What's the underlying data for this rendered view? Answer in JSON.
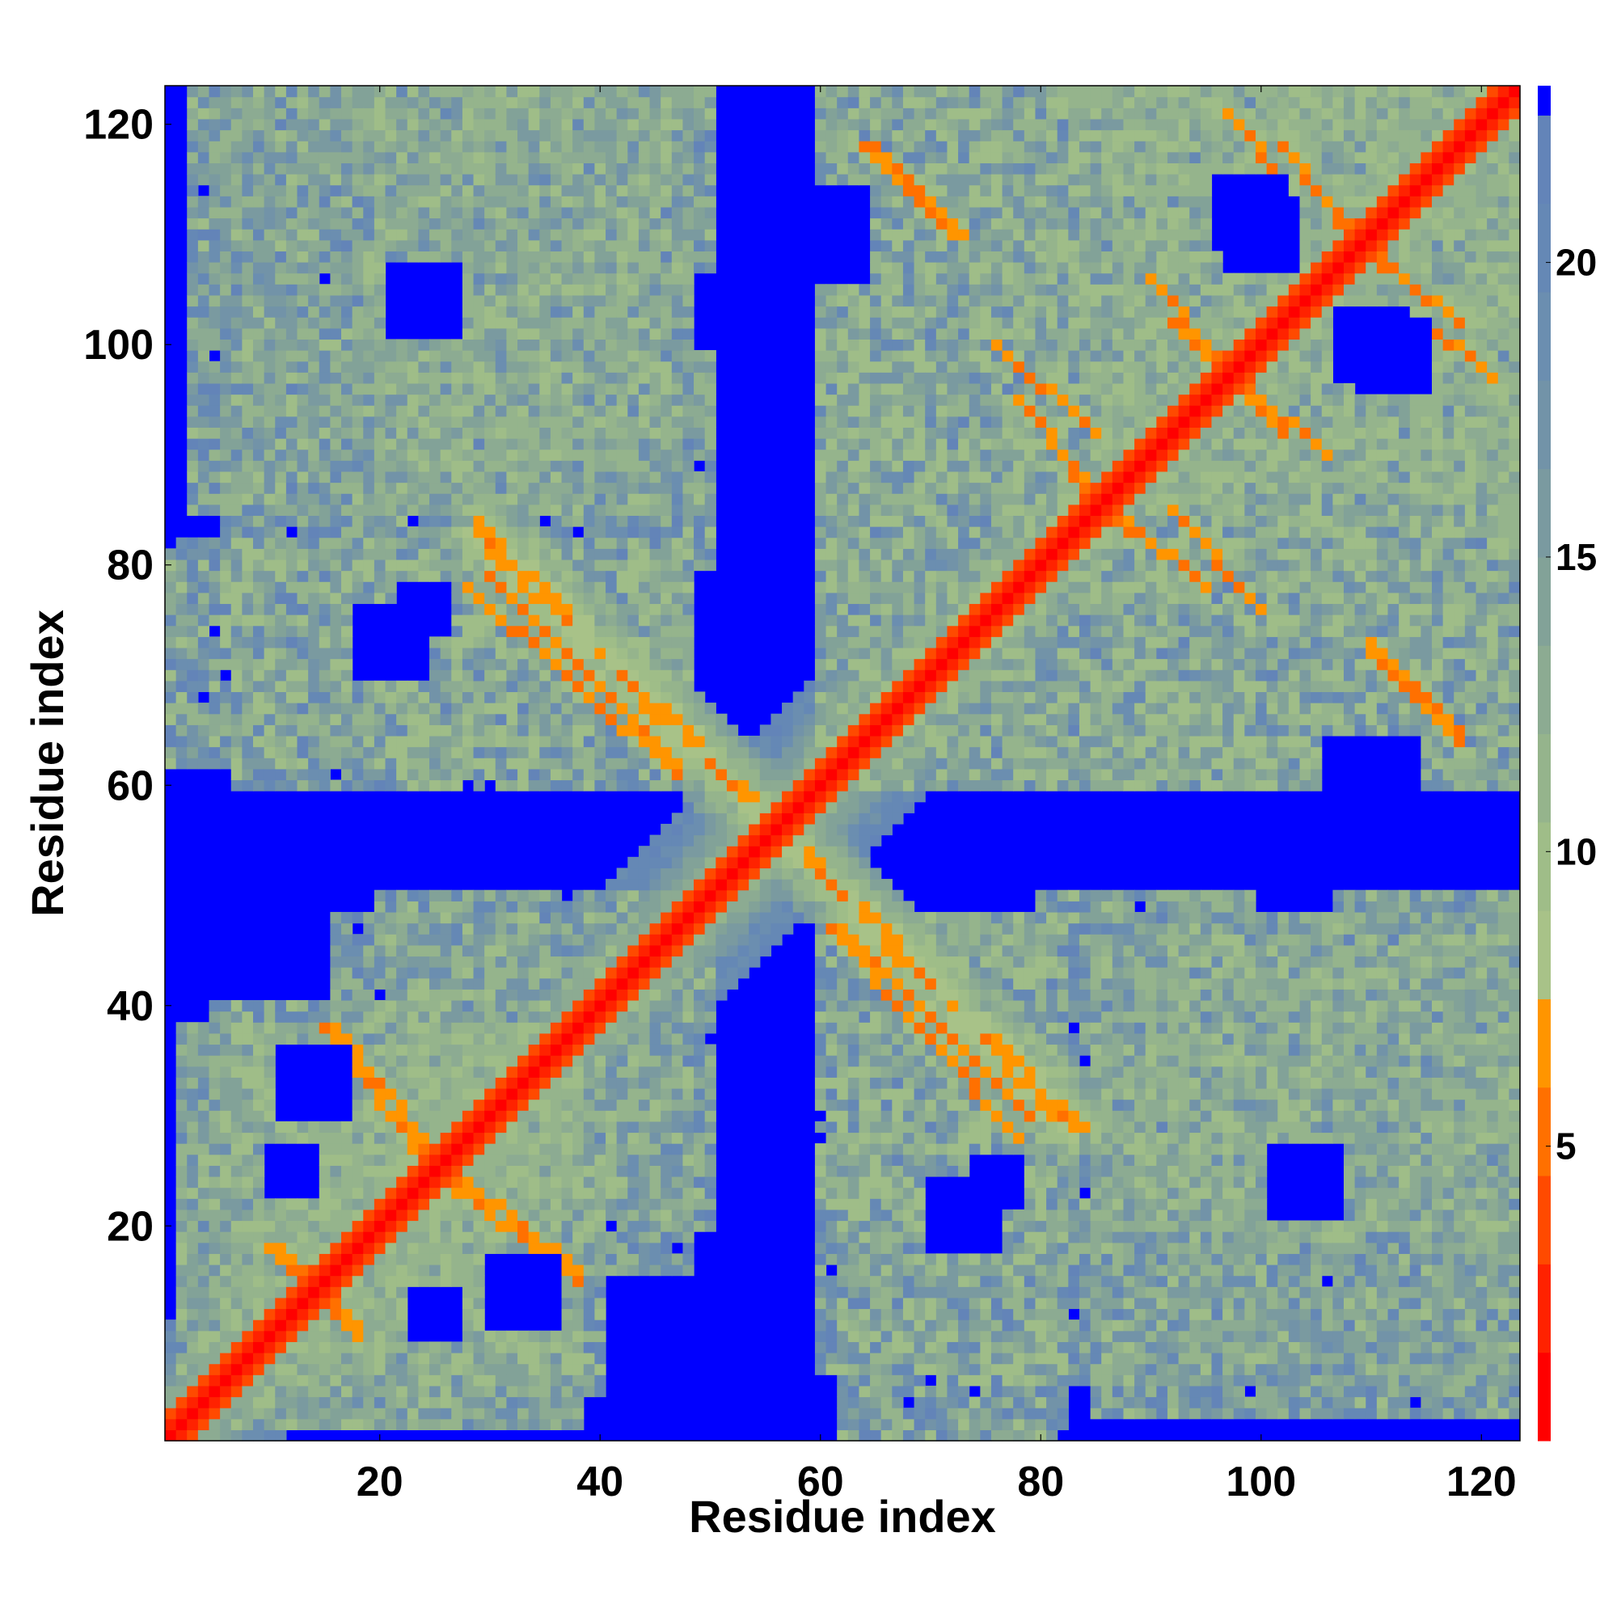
{
  "chart_data": {
    "type": "heatmap",
    "title": "",
    "xlabel": "Residue index",
    "ylabel": "Residue index",
    "n_residues": 123,
    "xlim": [
      1,
      123
    ],
    "ylim": [
      1,
      123
    ],
    "x_ticks": [
      20,
      40,
      60,
      80,
      100,
      120
    ],
    "y_ticks": [
      20,
      40,
      60,
      80,
      100,
      120
    ],
    "colorbar": {
      "ticks": [
        5,
        10,
        15,
        20
      ],
      "range": [
        0,
        23
      ],
      "levels": [
        {
          "max": 1.5,
          "color": "#ff0000"
        },
        {
          "max": 3.0,
          "color": "#ff2200"
        },
        {
          "max": 4.5,
          "color": "#ff4a00"
        },
        {
          "max": 6.0,
          "color": "#ff7000"
        },
        {
          "max": 7.5,
          "color": "#ff9500"
        },
        {
          "max": 9.0,
          "color": "#a8c288"
        },
        {
          "max": 10.5,
          "color": "#9fbd88"
        },
        {
          "max": 12.0,
          "color": "#95b48c"
        },
        {
          "max": 13.5,
          "color": "#8cab92"
        },
        {
          "max": 15.0,
          "color": "#82a298"
        },
        {
          "max": 16.5,
          "color": "#7a9aa0"
        },
        {
          "max": 18.0,
          "color": "#7293a8"
        },
        {
          "max": 19.5,
          "color": "#6b8eb0"
        },
        {
          "max": 21.0,
          "color": "#6588b5"
        },
        {
          "max": 22.5,
          "color": "#6384b8"
        },
        {
          "max": 999,
          "color": "#0000ff"
        }
      ],
      "cutoff": 22.5
    },
    "diagonal_value": 0,
    "contact_blocks_description_values": [
      {
        "res_i": [
          1,
          40
        ],
        "res_j": [
          1,
          40
        ],
        "min_distance": 5
      },
      {
        "res_i": [
          15,
          47
        ],
        "res_j": [
          15,
          47
        ],
        "min_distance": 4
      },
      {
        "res_i": [
          62,
          80
        ],
        "res_j": [
          40,
          62
        ],
        "min_distance": 4
      },
      {
        "res_i": [
          80,
          123
        ],
        "res_j": [
          80,
          123
        ],
        "min_distance": 4
      },
      {
        "res_i": [
          62,
          123
        ],
        "res_j": [
          85,
          123
        ],
        "min_distance": 5
      },
      {
        "res_i": [
          85,
          123
        ],
        "res_j": [
          1,
          45
        ],
        "min_distance": 5
      },
      {
        "res_i": [
          1,
          50
        ],
        "res_j": [
          85,
          123
        ],
        "min_distance": 5
      },
      {
        "res_i": [
          1,
          50
        ],
        "res_j": [
          62,
          80
        ],
        "min_distance": 4
      }
    ]
  }
}
